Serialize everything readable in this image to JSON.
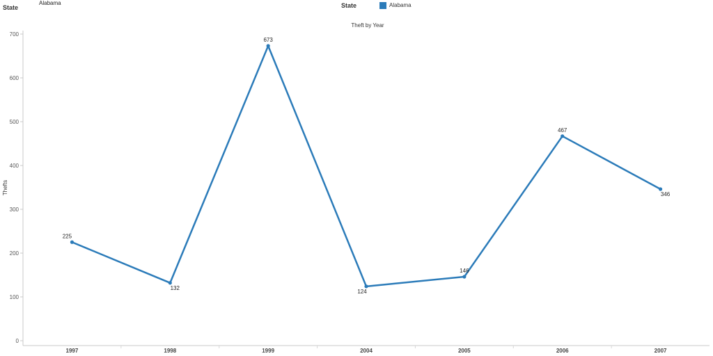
{
  "filter": {
    "title": "State",
    "value": "Alabama"
  },
  "legend": {
    "title": "State",
    "items": [
      {
        "label": "Alabama",
        "color": "#2b7bb9"
      }
    ]
  },
  "chart_data": {
    "type": "line",
    "title": "Theft by Year",
    "xlabel": "",
    "ylabel": "Thefts",
    "categories": [
      "1997",
      "1998",
      "1999",
      "2004",
      "2005",
      "2006",
      "2007"
    ],
    "series": [
      {
        "name": "Alabama",
        "values": [
          225,
          132,
          673,
          124,
          146,
          467,
          346
        ],
        "color": "#2b7bb9"
      }
    ],
    "ylim": [
      0,
      700
    ],
    "yticks": [
      0,
      100,
      200,
      300,
      400,
      500,
      600,
      700
    ],
    "data_labels": true,
    "legend_position": "top"
  }
}
